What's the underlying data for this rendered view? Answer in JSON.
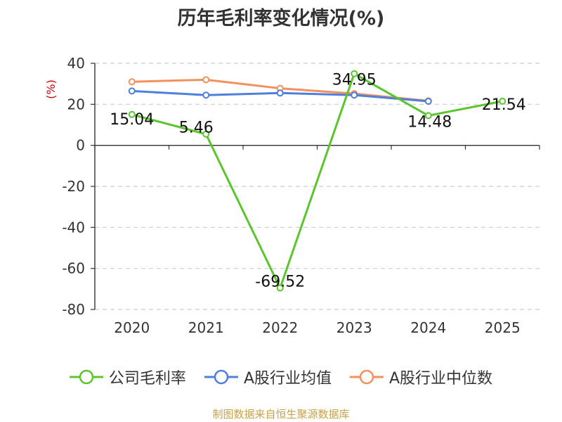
{
  "chart_data": {
    "type": "line",
    "title": "历年毛利率变化情况(%)",
    "ylabel": "(%)",
    "xlabel": "",
    "categories": [
      "2020",
      "2021",
      "2022",
      "2023",
      "2024",
      "2025"
    ],
    "ylim": [
      -80,
      40
    ],
    "yticks": [
      40,
      20,
      0,
      -20,
      -40,
      -60,
      -80
    ],
    "grid": true,
    "legend_position": "bottom",
    "series": [
      {
        "name": "公司毛利率",
        "color": "#5bc52e",
        "values": [
          15.04,
          5.46,
          -69.52,
          34.95,
          14.48,
          21.54
        ],
        "labels": [
          "15.04",
          "5.46",
          "-69.52",
          "34.95",
          "14.48",
          "21.54"
        ]
      },
      {
        "name": "A股行业均值",
        "color": "#4e7fdc",
        "values": [
          26.5,
          24.5,
          25.5,
          24.5,
          21.5,
          null
        ]
      },
      {
        "name": "A股行业中位数",
        "color": "#f3915c",
        "values": [
          31.0,
          32.0,
          27.8,
          25.2,
          21.7,
          null
        ]
      }
    ]
  },
  "source_note": "制图数据来自恒生聚源数据库"
}
